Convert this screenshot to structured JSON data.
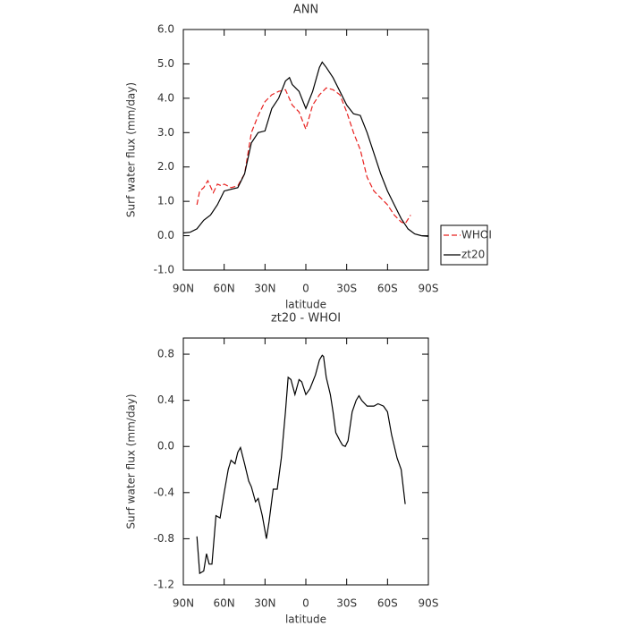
{
  "chart_data": [
    {
      "type": "line",
      "title": "ANN",
      "xlabel": "latitude",
      "ylabel": "Surf water flux (mm/day)",
      "xlim": [
        90,
        -90
      ],
      "xticks": [
        {
          "value": 90,
          "label": "90N"
        },
        {
          "value": 60,
          "label": "60N"
        },
        {
          "value": 30,
          "label": "30N"
        },
        0,
        {
          "value": -30,
          "label": "30S"
        },
        {
          "value": -60,
          "label": "60S"
        },
        {
          "value": -90,
          "label": "90S"
        }
      ],
      "ylim": [
        -1,
        6
      ],
      "yticks": [
        {
          "value": -1,
          "label": "-1.0"
        },
        {
          "value": 0,
          "label": "0.0"
        },
        {
          "value": 1,
          "label": "1.0"
        },
        {
          "value": 2,
          "label": "2.0"
        },
        {
          "value": 3,
          "label": "3.0"
        },
        {
          "value": 4,
          "label": "4.0"
        },
        {
          "value": 5,
          "label": "5.0"
        },
        {
          "value": 6,
          "label": "6.0"
        }
      ],
      "legend": "right",
      "series": [
        {
          "name": "WHOI",
          "color": "#e8201e",
          "linestyle": "dashed",
          "x": [
            80,
            78,
            75,
            72,
            68,
            65,
            62,
            60,
            55,
            50,
            45,
            40,
            35,
            30,
            25,
            20,
            15,
            10,
            5,
            0,
            -5,
            -10,
            -15,
            -20,
            -25,
            -30,
            -35,
            -40,
            -45,
            -50,
            -55,
            -60,
            -65,
            -70,
            -73,
            -77
          ],
          "values": [
            0.9,
            1.3,
            1.4,
            1.6,
            1.25,
            1.5,
            1.45,
            1.5,
            1.4,
            1.45,
            1.8,
            3.0,
            3.5,
            3.9,
            4.1,
            4.2,
            4.25,
            3.8,
            3.6,
            3.1,
            3.8,
            4.1,
            4.3,
            4.25,
            4.1,
            3.6,
            3.0,
            2.5,
            1.7,
            1.3,
            1.1,
            0.9,
            0.6,
            0.4,
            0.35,
            0.6
          ]
        },
        {
          "name": "zt20",
          "color": "#000000",
          "linestyle": "solid",
          "x": [
            90,
            85,
            80,
            75,
            70,
            65,
            60,
            55,
            50,
            45,
            40,
            35,
            30,
            25,
            20,
            15,
            12,
            10,
            5,
            0,
            -5,
            -10,
            -12,
            -15,
            -20,
            -25,
            -30,
            -35,
            -40,
            -45,
            -50,
            -55,
            -60,
            -65,
            -70,
            -75,
            -80,
            -85,
            -90
          ],
          "values": [
            0.08,
            0.1,
            0.2,
            0.45,
            0.6,
            0.9,
            1.3,
            1.35,
            1.4,
            1.8,
            2.7,
            3.0,
            3.05,
            3.7,
            4.0,
            4.5,
            4.6,
            4.4,
            4.2,
            3.7,
            4.2,
            4.9,
            5.05,
            4.9,
            4.6,
            4.2,
            3.8,
            3.55,
            3.5,
            3.0,
            2.4,
            1.8,
            1.3,
            0.9,
            0.5,
            0.2,
            0.05,
            0.0,
            -0.02
          ]
        }
      ]
    },
    {
      "type": "line",
      "title": "zt20 - WHOI",
      "xlabel": "latitude",
      "ylabel": "Surf water flux (mm/day)",
      "xlim": [
        90,
        -90
      ],
      "xticks": [
        {
          "value": 90,
          "label": "90N"
        },
        {
          "value": 60,
          "label": "60N"
        },
        {
          "value": 30,
          "label": "30N"
        },
        0,
        {
          "value": -30,
          "label": "30S"
        },
        {
          "value": -60,
          "label": "60S"
        },
        {
          "value": -90,
          "label": "90S"
        }
      ],
      "ylim": [
        -1.2,
        0.94
      ],
      "yticks": [
        -1.2,
        -0.8,
        -0.4,
        {
          "value": 0,
          "label": "0.0"
        },
        0.4,
        0.8
      ],
      "series": [
        {
          "color": "#000000",
          "linestyle": "solid",
          "x": [
            80,
            78,
            75,
            73,
            71,
            69,
            66,
            63,
            60,
            57,
            55,
            52,
            50,
            48,
            45,
            42,
            40,
            37,
            35,
            32,
            29,
            27,
            24,
            21,
            18,
            15,
            13,
            11,
            8,
            5,
            3,
            0,
            -3,
            -7,
            -10,
            -12,
            -13,
            -15,
            -18,
            -20,
            -22,
            -25,
            -27,
            -29,
            -31,
            -34,
            -37,
            -39,
            -41,
            -45,
            -50,
            -53,
            -57,
            -60,
            -63,
            -67,
            -70,
            -73
          ],
          "values": [
            -0.78,
            -1.1,
            -1.08,
            -0.93,
            -1.02,
            -1.02,
            -0.6,
            -0.62,
            -0.4,
            -0.2,
            -0.12,
            -0.15,
            -0.05,
            -0.01,
            -0.15,
            -0.3,
            -0.35,
            -0.48,
            -0.45,
            -0.6,
            -0.8,
            -0.65,
            -0.37,
            -0.37,
            -0.1,
            0.3,
            0.6,
            0.58,
            0.45,
            0.58,
            0.56,
            0.45,
            0.5,
            0.62,
            0.75,
            0.79,
            0.78,
            0.6,
            0.45,
            0.3,
            0.12,
            0.05,
            0.01,
            0.0,
            0.05,
            0.3,
            0.4,
            0.44,
            0.4,
            0.35,
            0.35,
            0.37,
            0.35,
            0.3,
            0.1,
            -0.1,
            -0.2,
            -0.5
          ]
        }
      ]
    }
  ]
}
